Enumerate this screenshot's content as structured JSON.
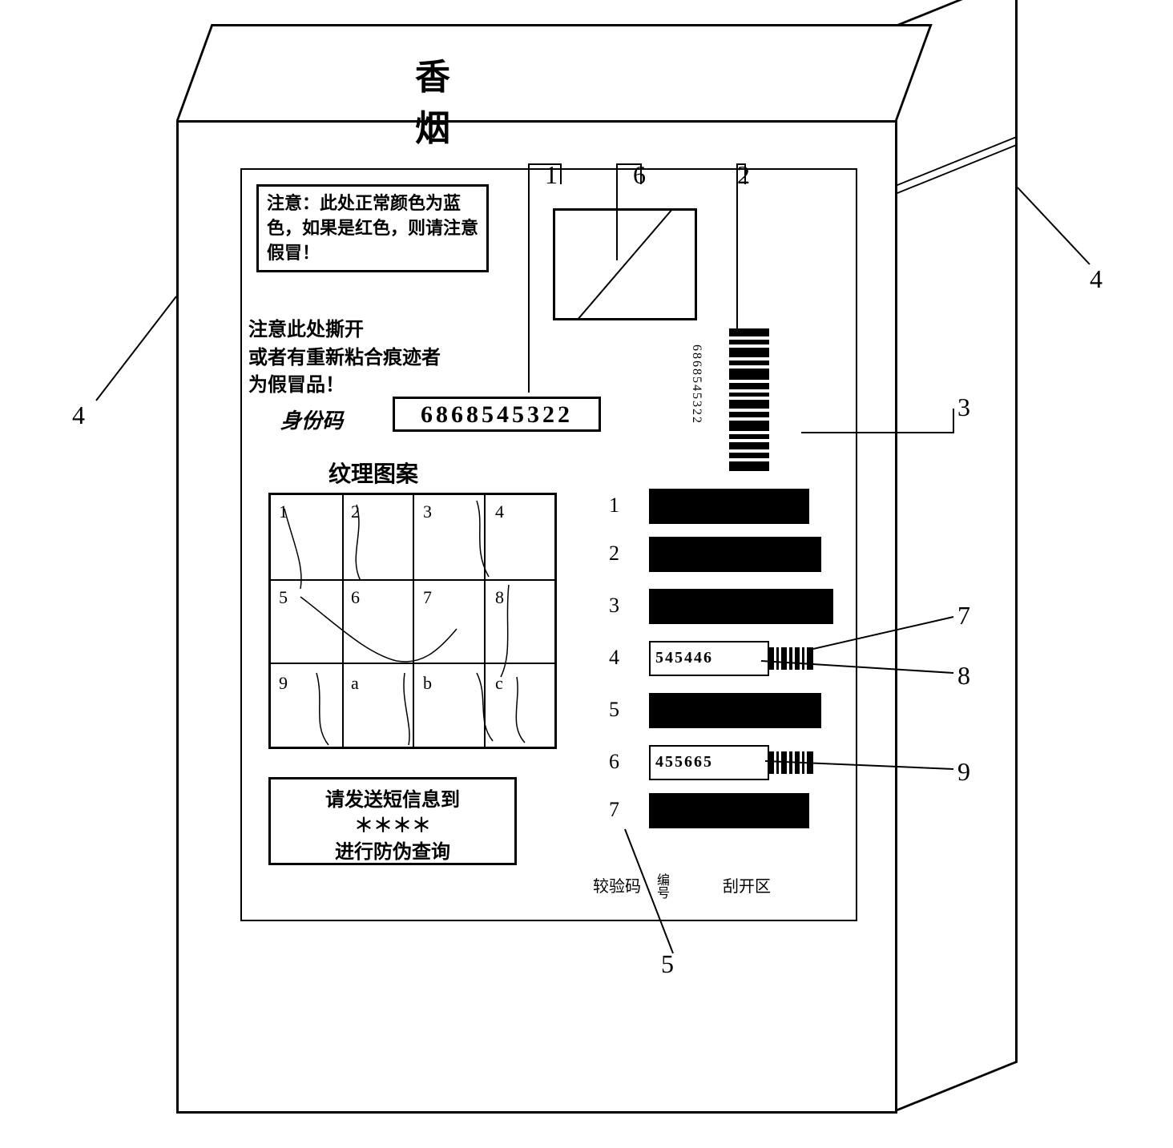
{
  "product_title": "香 烟",
  "notice": "注意：此处正常颜色为蓝色，如果是红色，则请注意假冒！",
  "tear_notice": "注意此处撕开\n或者有重新粘合痕迹者\n为假冒品！",
  "id_label": "身份码",
  "id_code": "6868545322",
  "texture_title": "纹理图案",
  "texture_cells": [
    "1",
    "2",
    "3",
    "4",
    "5",
    "6",
    "7",
    "8",
    "9",
    "a",
    "b",
    "c"
  ],
  "sms_line1": "请发送短信息到",
  "sms_stars": "＊＊＊＊",
  "sms_line2": "进行防伪查询",
  "vertical_barcode_text": "6868545322",
  "rows": [
    {
      "n": "1",
      "revealed": false,
      "code": ""
    },
    {
      "n": "2",
      "revealed": false,
      "code": ""
    },
    {
      "n": "3",
      "revealed": false,
      "code": ""
    },
    {
      "n": "4",
      "revealed": true,
      "code": "545446"
    },
    {
      "n": "5",
      "revealed": false,
      "code": ""
    },
    {
      "n": "6",
      "revealed": true,
      "code": "455665"
    },
    {
      "n": "7",
      "revealed": false,
      "code": ""
    }
  ],
  "col_label_check": "较验码",
  "col_label_no": "编号",
  "col_label_scratch": "刮开区",
  "callouts": {
    "1": "1",
    "2": "2",
    "3": "3",
    "4_left": "4",
    "4_right": "4",
    "5": "5",
    "6": "6",
    "7": "7",
    "8": "8",
    "9": "9"
  },
  "colors": {
    "stroke": "#000000",
    "background": "#ffffff"
  },
  "grid": {
    "cols": 4,
    "rows": 3
  },
  "row_tops": [
    580,
    640,
    705,
    770,
    835,
    900,
    960
  ]
}
